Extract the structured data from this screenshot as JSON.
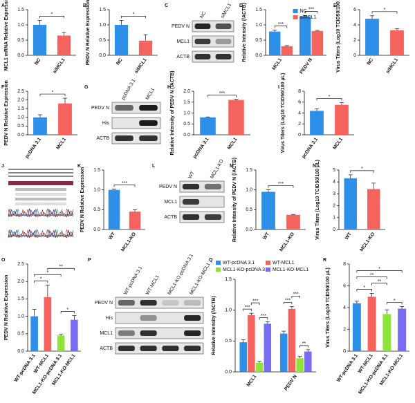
{
  "chart_data": [
    {
      "type": "bar",
      "panel": "A",
      "ylabel": "MCL1 mRNA Relative Expression",
      "categories": [
        "NC",
        "siMCL1"
      ],
      "values": [
        1.0,
        0.65
      ],
      "errors": [
        0.15,
        0.1
      ],
      "colors": [
        "#2e8fe8",
        "#f5635e"
      ],
      "ylim": [
        0,
        1.5
      ],
      "yticks": [
        {
          "value": 0,
          "label": "0.0"
        },
        0.5,
        {
          "value": 1,
          "label": "1.0"
        },
        1.5
      ],
      "significance": [
        "*"
      ]
    },
    {
      "type": "bar",
      "panel": "B",
      "ylabel": "PEDV N Relative Expression",
      "categories": [
        "NC",
        "siMCL1"
      ],
      "values": [
        1.0,
        0.48
      ],
      "errors": [
        0.15,
        0.2
      ],
      "colors": [
        "#2e8fe8",
        "#f5635e"
      ],
      "ylim": [
        0,
        1.5
      ],
      "yticks": [
        {
          "value": 0,
          "label": "0.0"
        },
        0.5,
        {
          "value": 1,
          "label": "1.0"
        },
        1.5
      ],
      "significance": [
        "*"
      ]
    },
    {
      "type": "blot",
      "panel": "C",
      "lanes": [
        "NC",
        "siMCL1"
      ],
      "rows": [
        "PEDV N",
        "MCL1",
        "ACTB"
      ]
    },
    {
      "type": "bar",
      "panel": "D",
      "ylabel": "Relative Intensity (/ACTB)",
      "categories": [
        "MCL1",
        "PEDV N"
      ],
      "series": [
        {
          "name": "NC",
          "color": "#2e8fe8",
          "values": [
            0.78,
            1.28
          ],
          "errors": [
            0.05,
            0.03
          ]
        },
        {
          "name": "siMCL1",
          "color": "#f5635e",
          "values": [
            0.3,
            0.8
          ],
          "errors": [
            0.02,
            0.02
          ]
        }
      ],
      "ylim": [
        0,
        1.5
      ],
      "yticks": [
        {
          "value": 0,
          "label": "0.0"
        },
        0.5,
        {
          "value": 1,
          "label": "1.0"
        },
        1.5
      ],
      "significance": [
        "***",
        "***"
      ]
    },
    {
      "type": "bar",
      "panel": "E",
      "ylabel": "Virus Titers (Log10 TCID50/100 μL)",
      "categories": [
        "NC",
        "siMCL1"
      ],
      "values": [
        4.8,
        3.3
      ],
      "errors": [
        0.4,
        0.2
      ],
      "colors": [
        "#2e8fe8",
        "#f5635e"
      ],
      "ylim": [
        0,
        6
      ],
      "yticks": [
        0,
        2,
        4,
        6
      ],
      "significance": [
        "*"
      ]
    },
    {
      "type": "bar",
      "panel": "F",
      "ylabel": "PEDV N Relative Expression",
      "categories": [
        "pcDNA 3.1",
        "MCL1"
      ],
      "values": [
        1.0,
        1.8
      ],
      "errors": [
        0.15,
        0.3
      ],
      "colors": [
        "#2e8fe8",
        "#f5635e"
      ],
      "ylim": [
        0,
        2.5
      ],
      "yticks": [
        {
          "value": 0,
          "label": "0.0"
        },
        0.5,
        {
          "value": 1,
          "label": "1.0"
        },
        1.5,
        {
          "value": 2,
          "label": "2.0"
        },
        2.5
      ],
      "significance": [
        "*"
      ]
    },
    {
      "type": "blot",
      "panel": "G",
      "lanes": [
        "pcDNA 3.1",
        "MCL1"
      ],
      "rows": [
        "PEDV N",
        "His",
        "ACTB"
      ]
    },
    {
      "type": "bar",
      "panel": "H",
      "ylabel": "Relative Intensity of PEDV N (/ACTB)",
      "categories": [
        "pcDNA 3.1",
        "MCL1"
      ],
      "values": [
        0.8,
        1.6
      ],
      "errors": [
        0.02,
        0.03
      ],
      "colors": [
        "#2e8fe8",
        "#f5635e"
      ],
      "ylim": [
        0,
        2
      ],
      "yticks": [
        {
          "value": 0,
          "label": "0.0"
        },
        0.5,
        {
          "value": 1,
          "label": "1.0"
        },
        1.5,
        {
          "value": 2,
          "label": "2.0"
        }
      ],
      "significance": [
        "***"
      ]
    },
    {
      "type": "bar",
      "panel": "I",
      "ylabel": "Virus Titers (Log10 TCID50/100 μL)",
      "categories": [
        "pcDNA 3.1",
        "MCL1"
      ],
      "values": [
        4.4,
        5.5
      ],
      "errors": [
        0.4,
        0.4
      ],
      "colors": [
        "#2e8fe8",
        "#f5635e"
      ],
      "ylim": [
        0,
        8
      ],
      "yticks": [
        0,
        2,
        4,
        6,
        8
      ],
      "significance": [
        "*"
      ]
    },
    {
      "type": "sequence",
      "panel": "J"
    },
    {
      "type": "bar",
      "panel": "K",
      "ylabel": "PEDV N Relative Expression",
      "categories": [
        "WT",
        "MCL1-KO"
      ],
      "values": [
        1.0,
        0.45
      ],
      "errors": [
        0.02,
        0.05
      ],
      "colors": [
        "#2e8fe8",
        "#f5635e"
      ],
      "ylim": [
        0,
        1.5
      ],
      "yticks": [
        {
          "value": 0,
          "label": "0.0"
        },
        0.5,
        {
          "value": 1,
          "label": "1.0"
        },
        1.5
      ],
      "significance": [
        "***"
      ]
    },
    {
      "type": "blot",
      "panel": "L",
      "lanes": [
        "WT",
        "MCL1-KO"
      ],
      "rows": [
        "PEDV N",
        "MCL1",
        "ACTB"
      ]
    },
    {
      "type": "bar",
      "panel": "M",
      "ylabel": "Relative Intensity of PEDV N (/ACTB)",
      "categories": [
        "WT",
        "MCL1-KO"
      ],
      "values": [
        0.95,
        0.37
      ],
      "errors": [
        0.05,
        0.01
      ],
      "colors": [
        "#2e8fe8",
        "#f5635e"
      ],
      "ylim": [
        0,
        1.5
      ],
      "yticks": [
        {
          "value": 0,
          "label": "0.0"
        },
        0.5,
        {
          "value": 1,
          "label": "1.0"
        },
        1.5
      ],
      "significance": [
        "***"
      ]
    },
    {
      "type": "bar",
      "panel": "N",
      "ylabel": "Virus Titers (Log10 TCID50/100 μL)",
      "categories": [
        "WT",
        "MCL1-KO"
      ],
      "values": [
        4.3,
        3.4
      ],
      "errors": [
        0.3,
        0.5
      ],
      "colors": [
        "#2e8fe8",
        "#f5635e"
      ],
      "ylim": [
        0,
        5
      ],
      "yticks": [
        0,
        1,
        2,
        3,
        4,
        5
      ],
      "significance": [
        "*"
      ]
    },
    {
      "type": "bar",
      "panel": "O",
      "ylabel": "PEDV N Relative Expression",
      "categories": [
        "WT-pcDNA 3.1",
        "WT-MCL1",
        "MCL1-KO-pcDNA 3.1",
        "MCL1-KO-MCL1"
      ],
      "values": [
        1.0,
        1.55,
        0.45,
        0.9
      ],
      "errors": [
        0.2,
        0.35,
        0.03,
        0.12
      ],
      "colors": [
        "#2e8fe8",
        "#f5635e",
        "#8fe33a",
        "#7a6cf0"
      ],
      "ylim": [
        0,
        2.5
      ],
      "yticks": [
        {
          "value": 0,
          "label": "0.0"
        },
        0.5,
        {
          "value": 1,
          "label": "1.0"
        },
        1.5,
        {
          "value": 2,
          "label": "2.0"
        },
        2.5
      ],
      "significance": [
        "*",
        "*",
        "*",
        "**"
      ]
    },
    {
      "type": "blot",
      "panel": "P",
      "lanes": [
        "WT-pcDNA 3.1",
        "WT-MCL1",
        "MCL1-KO-pcDNA 3.1",
        "MCL1-KO-MCL1"
      ],
      "rows": [
        "PEDV N",
        "His",
        "MCL1",
        "ACTB"
      ]
    },
    {
      "type": "bar",
      "panel": "Q",
      "ylabel": "Relative Intensity (/ACTB)",
      "categories": [
        "MCL1",
        "PEDV N"
      ],
      "series": [
        {
          "name": "WT-pcDNA 3.1",
          "color": "#2e8fe8",
          "values": [
            0.48,
            0.62
          ],
          "errors": [
            0.04,
            0.04
          ]
        },
        {
          "name": "WT-MCL1",
          "color": "#f5635e",
          "values": [
            0.92,
            1.02
          ],
          "errors": [
            0.03,
            0.04
          ]
        },
        {
          "name": "MCL1-KO-pcDNA 3.1",
          "color": "#8fe33a",
          "values": [
            0.15,
            0.22
          ],
          "errors": [
            0.02,
            0.03
          ]
        },
        {
          "name": "MCL1-KO-MCL1",
          "color": "#7a6cf0",
          "values": [
            0.78,
            0.33
          ],
          "errors": [
            0.03,
            0.03
          ]
        }
      ],
      "ylim": [
        0,
        1.5
      ],
      "yticks": [
        {
          "value": 0,
          "label": "0.0"
        },
        0.5,
        {
          "value": 1,
          "label": "1.0"
        },
        1.5
      ],
      "significance": [
        "***",
        "***",
        "***",
        "***",
        "**",
        "***"
      ]
    },
    {
      "type": "bar",
      "panel": "R",
      "ylabel": "Virus Titers (Log10 TCID50/100 μL)",
      "categories": [
        "WT-pcDNA 3.1",
        "WT-MCL1",
        "MCL1-KO-pcDNA 3.1",
        "MCL1-KO-MCL1"
      ],
      "values": [
        4.4,
        5.0,
        3.4,
        3.9
      ],
      "errors": [
        0.2,
        0.3,
        0.4,
        0.2
      ],
      "colors": [
        "#2e8fe8",
        "#f5635e",
        "#8fe33a",
        "#7a6cf0"
      ],
      "ylim": [
        0,
        8
      ],
      "yticks": [
        0,
        2,
        4,
        6,
        8
      ],
      "significance": [
        "*",
        "**",
        "*",
        "**",
        "*"
      ]
    }
  ]
}
